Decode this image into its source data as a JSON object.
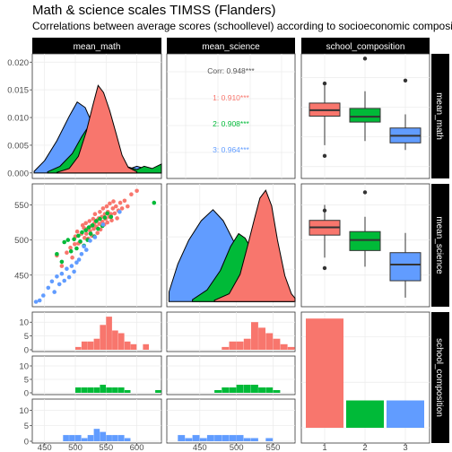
{
  "title": "Math & science scales TIMSS (Flanders)",
  "subtitle": "Correlations between average scores (schoollevel) according to socioeconomic composition",
  "colors": {
    "group1": "#F8766D",
    "group2": "#00BA38",
    "group3": "#619CFF",
    "strip": "#000000",
    "grid": "#EBEBEB"
  },
  "chart_data": {
    "type": "scatter",
    "variables": [
      "mean_math",
      "mean_science",
      "school_composition"
    ],
    "groups": [
      "1",
      "2",
      "3"
    ],
    "correlations": {
      "overall": "Corr: 0.948***",
      "groups": [
        "1: 0.910***",
        "2: 0.908***",
        "3: 0.964***"
      ]
    },
    "axes": {
      "mean_math": {
        "range": [
          430,
          640
        ],
        "ticks": [
          450,
          500,
          550,
          600
        ]
      },
      "mean_science": {
        "range": [
          405,
          580
        ],
        "ticks": [
          450,
          500,
          550
        ]
      },
      "density_math": {
        "range": [
          -0.001,
          0.0215
        ],
        "ticks": [
          0.0,
          0.005,
          0.01,
          0.015,
          0.02
        ],
        "tick_labels": [
          "0.000",
          "0.005",
          "0.010",
          "0.015",
          "0.020"
        ]
      },
      "school_composition": {
        "ticks": [
          "1",
          "2",
          "3"
        ]
      }
    },
    "density_math": {
      "3": [
        [
          433,
          0.0003
        ],
        [
          450,
          0.0022
        ],
        [
          470,
          0.0058
        ],
        [
          490,
          0.0102
        ],
        [
          503,
          0.0128
        ],
        [
          516,
          0.0118
        ],
        [
          530,
          0.0082
        ],
        [
          545,
          0.0045
        ],
        [
          560,
          0.0022
        ],
        [
          575,
          0.0012
        ],
        [
          590,
          0.0008
        ],
        [
          600,
          0.0012
        ],
        [
          610,
          0.0009
        ],
        [
          625,
          0.0004
        ],
        [
          640,
          0.0001
        ]
      ],
      "2": [
        [
          455,
          0.0002
        ],
        [
          475,
          0.0012
        ],
        [
          495,
          0.0035
        ],
        [
          510,
          0.0065
        ],
        [
          522,
          0.0085
        ],
        [
          535,
          0.0102
        ],
        [
          548,
          0.0098
        ],
        [
          560,
          0.0072
        ],
        [
          572,
          0.0035
        ],
        [
          582,
          0.0012
        ],
        [
          600,
          0.0006
        ],
        [
          612,
          0.0012
        ],
        [
          625,
          0.0008
        ],
        [
          640,
          0.0016
        ]
      ],
      "1": [
        [
          470,
          0.0001
        ],
        [
          490,
          0.0008
        ],
        [
          505,
          0.003
        ],
        [
          518,
          0.0075
        ],
        [
          528,
          0.012
        ],
        [
          537,
          0.0158
        ],
        [
          546,
          0.0145
        ],
        [
          556,
          0.0112
        ],
        [
          566,
          0.0072
        ],
        [
          576,
          0.0032
        ],
        [
          586,
          0.001
        ],
        [
          600,
          0.0002
        ]
      ]
    },
    "density_science": {
      "3": [
        [
          408,
          0.0015
        ],
        [
          420,
          0.0058
        ],
        [
          435,
          0.0095
        ],
        [
          452,
          0.0125
        ],
        [
          468,
          0.0142
        ],
        [
          482,
          0.0125
        ],
        [
          500,
          0.0085
        ],
        [
          515,
          0.0045
        ],
        [
          530,
          0.0022
        ],
        [
          545,
          0.001
        ],
        [
          560,
          0.0007
        ],
        [
          578,
          0.0004
        ]
      ],
      "2": [
        [
          440,
          0.0003
        ],
        [
          460,
          0.0018
        ],
        [
          478,
          0.0048
        ],
        [
          492,
          0.0085
        ],
        [
          503,
          0.0105
        ],
        [
          512,
          0.0098
        ],
        [
          525,
          0.0072
        ],
        [
          540,
          0.0038
        ],
        [
          555,
          0.0015
        ],
        [
          568,
          0.0006
        ],
        [
          578,
          0.0003
        ]
      ],
      "1": [
        [
          470,
          0.0002
        ],
        [
          490,
          0.0012
        ],
        [
          505,
          0.0042
        ],
        [
          515,
          0.0085
        ],
        [
          525,
          0.013
        ],
        [
          532,
          0.016
        ],
        [
          540,
          0.0172
        ],
        [
          548,
          0.0148
        ],
        [
          556,
          0.0095
        ],
        [
          566,
          0.004
        ],
        [
          575,
          0.0012
        ],
        [
          580,
          0.0005
        ]
      ]
    },
    "points": [
      [
        [
          470,
          478
        ],
        [
          478,
          463
        ],
        [
          486,
          482
        ],
        [
          492,
          489
        ],
        [
          495,
          475
        ],
        [
          499,
          494
        ],
        [
          500,
          505
        ],
        [
          503,
          512
        ],
        [
          505,
          495
        ],
        [
          508,
          497
        ],
        [
          510,
          509
        ],
        [
          512,
          521
        ],
        [
          514,
          517
        ],
        [
          515,
          503
        ],
        [
          517,
          524
        ],
        [
          518,
          509
        ],
        [
          520,
          516
        ],
        [
          521,
          502
        ],
        [
          523,
          527
        ],
        [
          524,
          513
        ],
        [
          526,
          520
        ],
        [
          527,
          506
        ],
        [
          529,
          530
        ],
        [
          530,
          516
        ],
        [
          531,
          524
        ],
        [
          532,
          537
        ],
        [
          534,
          519
        ],
        [
          535,
          528
        ],
        [
          536,
          510
        ],
        [
          538,
          531
        ],
        [
          539,
          523
        ],
        [
          540,
          540
        ],
        [
          541,
          515
        ],
        [
          543,
          533
        ],
        [
          544,
          526
        ],
        [
          545,
          545
        ],
        [
          547,
          522
        ],
        [
          548,
          537
        ],
        [
          549,
          530
        ],
        [
          551,
          548
        ],
        [
          552,
          525
        ],
        [
          553,
          540
        ],
        [
          555,
          533
        ],
        [
          556,
          552
        ],
        [
          558,
          537
        ],
        [
          559,
          528
        ],
        [
          561,
          545
        ],
        [
          562,
          555
        ],
        [
          564,
          538
        ],
        [
          566,
          548
        ],
        [
          568,
          531
        ],
        [
          570,
          542
        ],
        [
          573,
          553
        ],
        [
          576,
          545
        ],
        [
          580,
          556
        ],
        [
          585,
          548
        ],
        [
          591,
          565
        ],
        [
          600,
          570
        ]
      ],
      [
        [
          470,
          480
        ],
        [
          478,
          469
        ],
        [
          482,
          497
        ],
        [
          488,
          500
        ],
        [
          493,
          484
        ],
        [
          498,
          501
        ],
        [
          502,
          488
        ],
        [
          505,
          506
        ],
        [
          508,
          498
        ],
        [
          511,
          511
        ],
        [
          514,
          492
        ],
        [
          517,
          514
        ],
        [
          520,
          500
        ],
        [
          522,
          518
        ],
        [
          525,
          509
        ],
        [
          528,
          521
        ],
        [
          531,
          505
        ],
        [
          534,
          527
        ],
        [
          537,
          516
        ],
        [
          540,
          530
        ],
        [
          544,
          520
        ],
        [
          548,
          532
        ],
        [
          552,
          538
        ],
        [
          558,
          533
        ],
        [
          628,
          553
        ]
      ],
      [
        [
          436,
          412
        ],
        [
          442,
          414
        ],
        [
          448,
          421
        ],
        [
          456,
          432
        ],
        [
          462,
          441
        ],
        [
          466,
          426
        ],
        [
          470,
          448
        ],
        [
          474,
          437
        ],
        [
          478,
          452
        ],
        [
          482,
          442
        ],
        [
          486,
          459
        ],
        [
          490,
          447
        ],
        [
          494,
          463
        ],
        [
          498,
          455
        ],
        [
          502,
          468
        ],
        [
          506,
          472
        ],
        [
          510,
          480
        ],
        [
          514,
          491
        ],
        [
          518,
          486
        ],
        [
          524,
          499
        ],
        [
          532,
          504
        ],
        [
          545,
          522
        ],
        [
          572,
          540
        ]
      ]
    ],
    "histogram_math": {
      "bins": [
        440,
        450,
        460,
        470,
        480,
        490,
        500,
        510,
        520,
        530,
        540,
        550,
        560,
        570,
        580,
        590,
        600,
        610,
        620,
        630
      ],
      "counts": {
        "1": [
          0,
          0,
          0,
          0,
          0,
          0,
          1,
          3,
          3,
          4,
          9,
          12,
          7,
          6,
          3,
          2,
          0,
          2,
          0,
          0
        ],
        "2": [
          0,
          0,
          0,
          0,
          0,
          0,
          2,
          2,
          2,
          2,
          3,
          2,
          2,
          2,
          1,
          0,
          0,
          0,
          0,
          1
        ],
        "3": [
          0,
          0,
          0,
          0,
          2,
          2,
          2,
          1,
          2,
          4,
          3,
          2,
          2,
          2,
          1,
          0,
          0,
          0,
          0,
          0
        ]
      },
      "ylim": [
        0,
        13
      ],
      "ticks": [
        0,
        5,
        10
      ]
    },
    "histogram_science": {
      "bins": [
        420,
        430,
        440,
        450,
        460,
        470,
        480,
        490,
        500,
        510,
        520,
        530,
        540,
        550,
        560,
        570,
        580
      ],
      "counts": {
        "1": [
          0,
          0,
          0,
          0,
          0,
          0,
          1,
          3,
          3,
          4,
          10,
          8,
          6,
          4,
          2,
          1,
          0
        ],
        "2": [
          0,
          0,
          0,
          0,
          0,
          1,
          2,
          2,
          3,
          3,
          3,
          2,
          2,
          1,
          0,
          0,
          0
        ],
        "3": [
          2,
          1,
          2,
          1,
          2,
          2,
          2,
          2,
          2,
          1,
          1,
          0,
          1,
          0,
          0,
          0,
          0
        ]
      }
    },
    "bar_counts": {
      "values": [
        12,
        3,
        3
      ],
      "ylim": [
        0,
        13
      ]
    }
  }
}
